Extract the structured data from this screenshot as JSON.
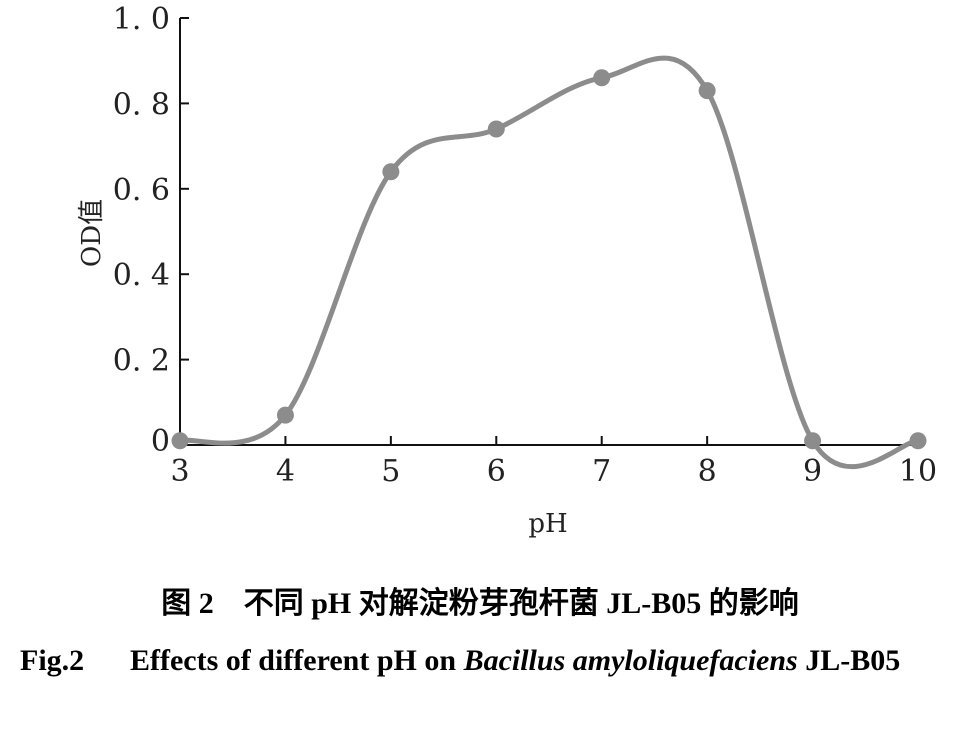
{
  "chart_data": {
    "type": "line",
    "x": [
      3,
      4,
      5,
      6,
      7,
      8,
      9,
      10
    ],
    "series": [
      {
        "values": [
          0.01,
          0.07,
          0.64,
          0.74,
          0.86,
          0.83,
          0.01,
          0.01
        ]
      }
    ],
    "xlabel": "pH",
    "ylabel": "OD值",
    "xlim": [
      3,
      10
    ],
    "ylim": [
      0,
      1.0
    ],
    "x_ticks": [
      "3",
      "4",
      "5",
      "6",
      "7",
      "8",
      "9",
      "10"
    ],
    "y_ticks": [
      "0",
      "0. 2",
      "0. 4",
      "0. 6",
      "0. 8",
      "1. 0"
    ],
    "grid": false,
    "line_color": "#8c8c8c",
    "marker_color": "#8c8c8c"
  },
  "caption": {
    "cn": "图 2　不同 pH 对解淀粉芽孢杆菌 JL-B05 的影响",
    "fig_label": "Fig.2",
    "text_before": "Effects of different pH on",
    "species": "Bacillus amyloliquefaciens",
    "text_after": "JL-B05"
  }
}
